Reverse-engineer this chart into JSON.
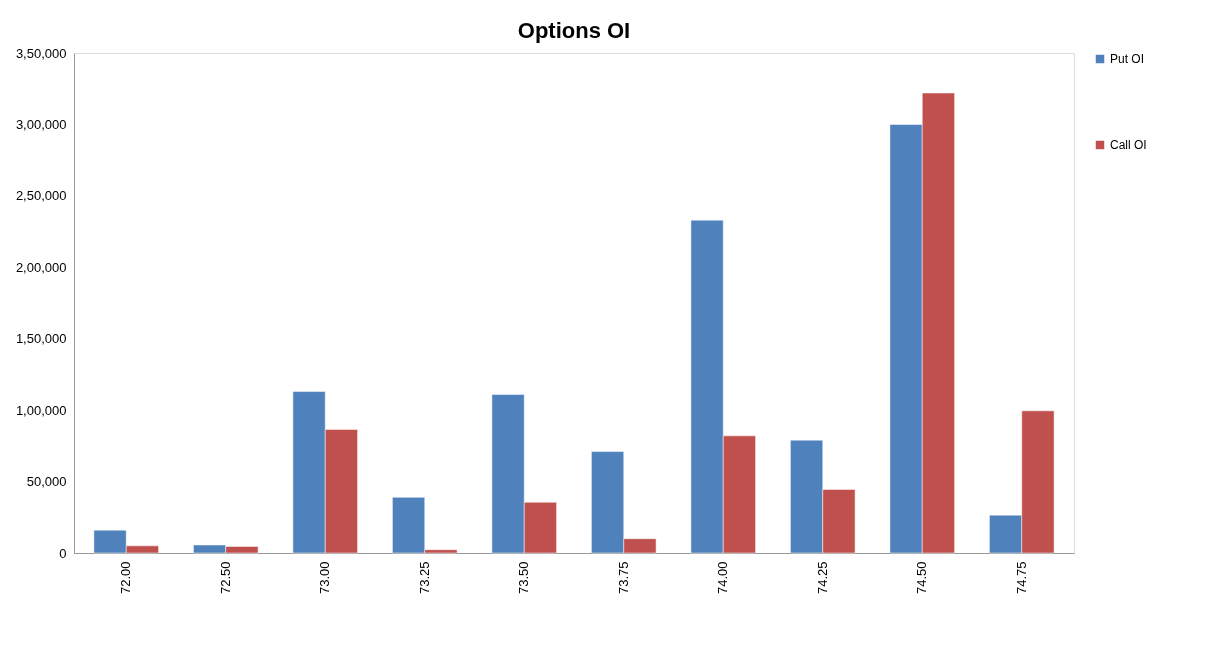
{
  "chart_data": {
    "type": "bar",
    "title": "Options OI",
    "categories": [
      "72.00",
      "72.50",
      "73.00",
      "73.25",
      "73.50",
      "73.75",
      "74.00",
      "74.25",
      "74.50",
      "74.75"
    ],
    "series": [
      {
        "name": "Put OI",
        "color": "#4f81bd",
        "values": [
          16000,
          5600,
          113000,
          39000,
          111000,
          71000,
          233000,
          79000,
          300000,
          26500
        ]
      },
      {
        "name": "Call OI",
        "color": "#c0504d",
        "values": [
          5000,
          4600,
          86500,
          2300,
          35500,
          10000,
          82000,
          44500,
          322000,
          99500
        ]
      }
    ],
    "ylim": [
      0,
      350000
    ],
    "yticks": [
      {
        "value": 0,
        "label": "0"
      },
      {
        "value": 50000,
        "label": "50,000"
      },
      {
        "value": 100000,
        "label": "1,00,000"
      },
      {
        "value": 150000,
        "label": "1,50,000"
      },
      {
        "value": 200000,
        "label": "2,00,000"
      },
      {
        "value": 250000,
        "label": "2,50,000"
      },
      {
        "value": 300000,
        "label": "3,00,000"
      },
      {
        "value": 350000,
        "label": "3,50,000"
      }
    ],
    "grid": false,
    "legend": "right"
  }
}
